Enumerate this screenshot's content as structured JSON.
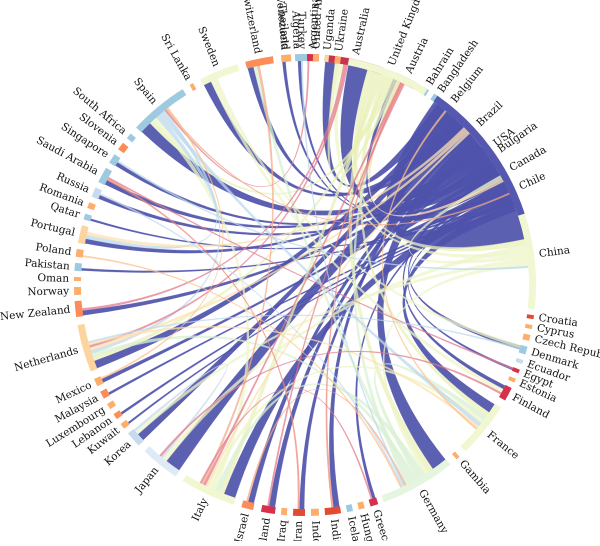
{
  "countries": [
    {
      "name": "Venezuela",
      "a0": -5.5,
      "a1": -4.5,
      "color": "#9ecae1"
    },
    {
      "name": "Algeria",
      "a0": -2.5,
      "a1": -1.5,
      "color": "#9ecae1"
    },
    {
      "name": "Argentina",
      "a0": 0.5,
      "a1": 3.5,
      "color": "#d6304b"
    },
    {
      "name": "Australia",
      "a0": 5.0,
      "a1": 20.0,
      "color": "#c8344e"
    },
    {
      "name": "Austria",
      "a0": 23.0,
      "a1": 29.0,
      "color": "#c8344e"
    },
    {
      "name": "Bahrain",
      "a0": 31.0,
      "a1": 32.5,
      "color": "#9ecae1"
    },
    {
      "name": "Bangladesh",
      "a0": 34.0,
      "a1": 36.0,
      "color": "#9ecae1"
    },
    {
      "name": "Belgium",
      "a0": 37.5,
      "a1": 40.5,
      "color": "#fdae6b"
    },
    {
      "name": "Brazil",
      "a0": 42.5,
      "a1": 52.0,
      "color": "#fdd49e"
    },
    {
      "name": "Bulgaria",
      "a0": 54.0,
      "a1": 56.5,
      "color": "#fdae6b"
    },
    {
      "name": "Canada",
      "a0": 58.0,
      "a1": 63.0,
      "color": "#fdd49e"
    },
    {
      "name": "Chile",
      "a0": 64.5,
      "a1": 66.5,
      "color": "#fc8d59"
    },
    {
      "name": "China",
      "a0": 69.0,
      "a1": 96.0,
      "color": "#f1f7d0"
    },
    {
      "name": "Croatia",
      "a0": 97.5,
      "a1": 98.5,
      "color": "#e34a33"
    },
    {
      "name": "Cyprus",
      "a0": 100.0,
      "a1": 101.0,
      "color": "#fdae6b"
    },
    {
      "name": "Czech Republic",
      "a0": 102.5,
      "a1": 104.0,
      "color": "#fdae6b"
    },
    {
      "name": "Denmark",
      "a0": 105.5,
      "a1": 107.5,
      "color": "#9ecae1"
    },
    {
      "name": "Ecuador",
      "a0": 109.0,
      "a1": 110.0,
      "color": "#c6dbef"
    },
    {
      "name": "Egypt",
      "a0": 111.5,
      "a1": 112.5,
      "color": "#d6304b"
    },
    {
      "name": "Estonia",
      "a0": 114.0,
      "a1": 115.0,
      "color": "#fdae6b"
    },
    {
      "name": "Finland",
      "a0": 116.5,
      "a1": 120.0,
      "color": "#d6304b"
    },
    {
      "name": "France",
      "a0": 122.0,
      "a1": 136.0,
      "color": "#f1f7d0"
    },
    {
      "name": "Gambia",
      "a0": 138.0,
      "a1": 139.0,
      "color": "#fdae6b"
    },
    {
      "name": "Germany",
      "a0": 141.0,
      "a1": 160.0,
      "color": "#e5f5e0"
    },
    {
      "name": "Greece",
      "a0": 161.5,
      "a1": 163.5,
      "color": "#d6304b"
    },
    {
      "name": "Hungary",
      "a0": 165.0,
      "a1": 166.5,
      "color": "#fdae6b"
    },
    {
      "name": "Iceland",
      "a0": 168.0,
      "a1": 169.5,
      "color": "#9ecae1"
    },
    {
      "name": "India",
      "a0": 171.0,
      "a1": 175.0,
      "color": "#e34a33"
    },
    {
      "name": "Indonesia",
      "a0": 176.5,
      "a1": 178.5,
      "color": "#fdae6b"
    },
    {
      "name": "Iran",
      "a0": 180.0,
      "a1": 183.0,
      "color": "#e34a33"
    },
    {
      "name": "Iraq",
      "a0": 184.5,
      "a1": 186.0,
      "color": "#fdae6b"
    },
    {
      "name": "Ireland",
      "a0": 187.5,
      "a1": 191.0,
      "color": "#d6304b"
    },
    {
      "name": "Israel",
      "a0": 193.0,
      "a1": 196.0,
      "color": "#fc8d59"
    },
    {
      "name": "Italy",
      "a0": 198.0,
      "a1": 212.0,
      "color": "#f1f7d0"
    },
    {
      "name": "Japan",
      "a0": 214.0,
      "a1": 224.0,
      "color": "#deebf7"
    },
    {
      "name": "Korea",
      "a0": 226.0,
      "a1": 230.0,
      "color": "#c6dbef"
    },
    {
      "name": "Kuwait",
      "a0": 231.5,
      "a1": 233.0,
      "color": "#fdae6b"
    },
    {
      "name": "Lebanon",
      "a0": 234.5,
      "a1": 236.0,
      "color": "#fc8d59"
    },
    {
      "name": "Luxembourg",
      "a0": 237.5,
      "a1": 239.0,
      "color": "#fdae6b"
    },
    {
      "name": "Malaysia",
      "a0": 240.5,
      "a1": 242.5,
      "color": "#fc8d59"
    },
    {
      "name": "Mexico",
      "a0": 244.0,
      "a1": 246.0,
      "color": "#fdae6b"
    },
    {
      "name": "Netherlands",
      "a0": 248.0,
      "a1": 260.0,
      "color": "#fdd49e"
    },
    {
      "name": "New Zealand",
      "a0": 262.0,
      "a1": 266.0,
      "color": "#fc8d59"
    },
    {
      "name": "Norway",
      "a0": 267.5,
      "a1": 269.5,
      "color": "#fdae6b"
    },
    {
      "name": "Oman",
      "a0": 271.0,
      "a1": 272.0,
      "color": "#fdae6b"
    },
    {
      "name": "Pakistan",
      "a0": 273.5,
      "a1": 275.5,
      "color": "#9ecae1"
    },
    {
      "name": "Poland",
      "a0": 277.0,
      "a1": 279.0,
      "color": "#fdae6b"
    },
    {
      "name": "Portugal",
      "a0": 280.5,
      "a1": 285.0,
      "color": "#fdd49e"
    },
    {
      "name": "Qatar",
      "a0": 286.5,
      "a1": 288.0,
      "color": "#9ecae1"
    },
    {
      "name": "Romania",
      "a0": 289.5,
      "a1": 291.0,
      "color": "#fdae6b"
    },
    {
      "name": "Russia",
      "a0": 292.5,
      "a1": 295.0,
      "color": "#c6dbef"
    },
    {
      "name": "Saudi Arabia",
      "a0": 296.5,
      "a1": 300.5,
      "color": "#9ecae1"
    },
    {
      "name": "Singapore",
      "a0": 302.0,
      "a1": 304.5,
      "color": "#9ecae1"
    },
    {
      "name": "Slovenia",
      "a0": 306.0,
      "a1": 308.0,
      "color": "#fc8d59"
    },
    {
      "name": "South Africa",
      "a0": 309.5,
      "a1": 311.0,
      "color": "#9ecae1"
    },
    {
      "name": "Spain",
      "a0": 313.0,
      "a1": 328.0,
      "color": "#9ecae1"
    },
    {
      "name": "Sri Lanka",
      "a0": 330.0,
      "a1": 331.0,
      "color": "#fdae6b"
    },
    {
      "name": "Sweden",
      "a0": 333.0,
      "a1": 343.0,
      "color": "#f1f7d0"
    },
    {
      "name": "Switzerland",
      "a0": 345.0,
      "a1": 352.0,
      "color": "#fc8d59"
    },
    {
      "name": "Thailand",
      "a0": 354.0,
      "a1": 356.5,
      "color": "#fdae6b"
    },
    {
      "name": "Turkey",
      "a0": 358.0,
      "a1": 360.5,
      "color": "#9ecae1"
    },
    {
      "name": "United Arab Emirates",
      "a0": 362.0,
      "a1": 363.5,
      "color": "#fdae6b"
    },
    {
      "name": "Uganda",
      "a0": 365.0,
      "a1": 366.0,
      "color": "#fdd49e"
    },
    {
      "name": "Ukraine",
      "a0": 367.5,
      "a1": 369.0,
      "color": "#fdae6b"
    },
    {
      "name": "United Kingdom",
      "a0": 371.0,
      "a1": 392.0,
      "color": "#f1f7d0"
    },
    {
      "name": "USA",
      "a0": 395.0,
      "a1": 432.0,
      "color": "#5558b0"
    }
  ],
  "chords": [
    {
      "from": "USA",
      "to": "China",
      "w": 9,
      "color": "#4e52aa"
    },
    {
      "from": "USA",
      "to": "Japan",
      "w": 4,
      "color": "#4e52aa"
    },
    {
      "from": "USA",
      "to": "Germany",
      "w": 4,
      "color": "#4e52aa"
    },
    {
      "from": "USA",
      "to": "Spain",
      "w": 3,
      "color": "#4e52aa"
    },
    {
      "from": "USA",
      "to": "United Kingdom",
      "w": 5,
      "color": "#4e52aa"
    },
    {
      "from": "USA",
      "to": "Brazil",
      "w": 2.5,
      "color": "#4e52aa"
    },
    {
      "from": "USA",
      "to": "Canada",
      "w": 2.5,
      "color": "#4e52aa"
    },
    {
      "from": "USA",
      "to": "Italy",
      "w": 3,
      "color": "#4e52aa"
    },
    {
      "from": "USA",
      "to": "France",
      "w": 2.5,
      "color": "#4e52aa"
    },
    {
      "from": "USA",
      "to": "Australia",
      "w": 2.5,
      "color": "#4e52aa"
    },
    {
      "from": "USA",
      "to": "Netherlands",
      "w": 2,
      "color": "#4e52aa"
    },
    {
      "from": "USA",
      "to": "Korea",
      "w": 2,
      "color": "#4e52aa"
    },
    {
      "from": "USA",
      "to": "Sweden",
      "w": 2,
      "color": "#4e52aa"
    },
    {
      "from": "USA",
      "to": "Switzerland",
      "w": 1.5,
      "color": "#4e52aa"
    },
    {
      "from": "USA",
      "to": "India",
      "w": 1.5,
      "color": "#4e52aa"
    },
    {
      "from": "USA",
      "to": "Israel",
      "w": 1.5,
      "color": "#4e52aa"
    },
    {
      "from": "USA",
      "to": "Ireland",
      "w": 1.5,
      "color": "#4e52aa"
    },
    {
      "from": "USA",
      "to": "Iran",
      "w": 1.2,
      "color": "#4e52aa"
    },
    {
      "from": "USA",
      "to": "Portugal",
      "w": 1.2,
      "color": "#4e52aa"
    },
    {
      "from": "USA",
      "to": "Saudi Arabia",
      "w": 1.2,
      "color": "#4e52aa"
    },
    {
      "from": "USA",
      "to": "New Zealand",
      "w": 1.2,
      "color": "#4e52aa"
    },
    {
      "from": "USA",
      "to": "Chile",
      "w": 1,
      "color": "#4e52aa"
    },
    {
      "from": "USA",
      "to": "Singapore",
      "w": 1,
      "color": "#4e52aa"
    },
    {
      "from": "USA",
      "to": "Russia",
      "w": 1,
      "color": "#4e52aa"
    },
    {
      "from": "USA",
      "to": "Mexico",
      "w": 1,
      "color": "#4e52aa"
    },
    {
      "from": "USA",
      "to": "Finland",
      "w": 1,
      "color": "#4e52aa"
    },
    {
      "from": "USA",
      "to": "Austria",
      "w": 1,
      "color": "#4e52aa"
    },
    {
      "from": "USA",
      "to": "Belgium",
      "w": 1,
      "color": "#4e52aa"
    },
    {
      "from": "USA",
      "to": "Denmark",
      "w": 1,
      "color": "#4e52aa"
    },
    {
      "from": "USA",
      "to": "Greece",
      "w": 0.8,
      "color": "#4e52aa"
    },
    {
      "from": "USA",
      "to": "Turkey",
      "w": 0.8,
      "color": "#4e52aa"
    },
    {
      "from": "USA",
      "to": "Thailand",
      "w": 0.8,
      "color": "#4e52aa"
    },
    {
      "from": "USA",
      "to": "Egypt",
      "w": 0.6,
      "color": "#4e52aa"
    },
    {
      "from": "USA",
      "to": "Pakistan",
      "w": 0.6,
      "color": "#4e52aa"
    },
    {
      "from": "USA",
      "to": "Malaysia",
      "w": 0.6,
      "color": "#4e52aa"
    },
    {
      "from": "USA",
      "to": "Lebanon",
      "w": 0.6,
      "color": "#4e52aa"
    },
    {
      "from": "USA",
      "to": "Qatar",
      "w": 0.5,
      "color": "#4e52aa"
    },
    {
      "from": "USA",
      "to": "Kuwait",
      "w": 0.5,
      "color": "#4e52aa"
    },
    {
      "from": "United Kingdom",
      "to": "China",
      "w": 1.5,
      "color": "#e9f0b8"
    },
    {
      "from": "United Kingdom",
      "to": "Germany",
      "w": 1.5,
      "color": "#e9f0b8"
    },
    {
      "from": "United Kingdom",
      "to": "Italy",
      "w": 1.2,
      "color": "#e9f0b8"
    },
    {
      "from": "United Kingdom",
      "to": "France",
      "w": 1.2,
      "color": "#e9f0b8"
    },
    {
      "from": "United Kingdom",
      "to": "Netherlands",
      "w": 1,
      "color": "#e9f0b8"
    },
    {
      "from": "United Kingdom",
      "to": "Spain",
      "w": 1,
      "color": "#e9f0b8"
    },
    {
      "from": "United Kingdom",
      "to": "Australia",
      "w": 1,
      "color": "#e9f0b8"
    },
    {
      "from": "China",
      "to": "Japan",
      "w": 1.2,
      "color": "#eef5c8"
    },
    {
      "from": "China",
      "to": "Australia",
      "w": 1.2,
      "color": "#eef5c8"
    },
    {
      "from": "China",
      "to": "Canada",
      "w": 1,
      "color": "#eef5c8"
    },
    {
      "from": "China",
      "to": "Korea",
      "w": 1,
      "color": "#eef5c8"
    },
    {
      "from": "China",
      "to": "Germany",
      "w": 1,
      "color": "#eef5c8"
    },
    {
      "from": "Germany",
      "to": "Italy",
      "w": 1.2,
      "color": "#d9f0d3"
    },
    {
      "from": "Germany",
      "to": "France",
      "w": 1.2,
      "color": "#d9f0d3"
    },
    {
      "from": "Germany",
      "to": "Netherlands",
      "w": 1,
      "color": "#d9f0d3"
    },
    {
      "from": "Germany",
      "to": "Switzerland",
      "w": 1,
      "color": "#d9f0d3"
    },
    {
      "from": "Germany",
      "to": "Austria",
      "w": 1,
      "color": "#d9f0d3"
    },
    {
      "from": "Italy",
      "to": "Spain",
      "w": 1.2,
      "color": "#eef5c8"
    },
    {
      "from": "Italy",
      "to": "France",
      "w": 1,
      "color": "#eef5c8"
    },
    {
      "from": "Spain",
      "to": "Portugal",
      "w": 1,
      "color": "#bcd9ec"
    },
    {
      "from": "Spain",
      "to": "France",
      "w": 1,
      "color": "#bcd9ec"
    },
    {
      "from": "Spain",
      "to": "Netherlands",
      "w": 0.8,
      "color": "#bcd9ec"
    },
    {
      "from": "Sweden",
      "to": "Finland",
      "w": 1,
      "color": "#eef5c8"
    },
    {
      "from": "Sweden",
      "to": "Denmark",
      "w": 0.8,
      "color": "#eef5c8"
    },
    {
      "from": "Brazil",
      "to": "Portugal",
      "w": 0.8,
      "color": "#fde0b2"
    },
    {
      "from": "Brazil",
      "to": "Netherlands",
      "w": 0.8,
      "color": "#fde0b2"
    },
    {
      "from": "Brazil",
      "to": "Italy",
      "w": 0.6,
      "color": "#fde0b2"
    },
    {
      "from": "Canada",
      "to": "United Kingdom",
      "w": 0.8,
      "color": "#fde0b2"
    },
    {
      "from": "Australia",
      "to": "New Zealand",
      "w": 0.6,
      "color": "#e17b8c"
    },
    {
      "from": "Australia",
      "to": "Netherlands",
      "w": 0.6,
      "color": "#e17b8c"
    },
    {
      "from": "Austria",
      "to": "Italy",
      "w": 0.6,
      "color": "#e17b8c"
    },
    {
      "from": "Switzerland",
      "to": "Italy",
      "w": 0.6,
      "color": "#f5a98a"
    },
    {
      "from": "Iran",
      "to": "Saudi Arabia",
      "w": 0.5,
      "color": "#ef8a7a"
    },
    {
      "from": "India",
      "to": "United Kingdom",
      "w": 0.5,
      "color": "#ef8a7a"
    },
    {
      "from": "Japan",
      "to": "Korea",
      "w": 0.6,
      "color": "#c6dbef"
    },
    {
      "from": "Netherlands",
      "to": "France",
      "w": 0.6,
      "color": "#fde0b2"
    },
    {
      "from": "Finland",
      "to": "Japan",
      "w": 0.5,
      "color": "#e17b8c"
    },
    {
      "from": "Ireland",
      "to": "United Kingdom",
      "w": 0.5,
      "color": "#e17b8c"
    },
    {
      "from": "Israel",
      "to": "Germany",
      "w": 0.5,
      "color": "#f5a98a"
    },
    {
      "from": "Greece",
      "to": "Italy",
      "w": 0.4,
      "color": "#e17b8c"
    },
    {
      "from": "Egypt",
      "to": "Saudi Arabia",
      "w": 0.4,
      "color": "#e17b8c"
    },
    {
      "from": "Argentina",
      "to": "Spain",
      "w": 0.4,
      "color": "#e17b8c"
    },
    {
      "from": "Turkey",
      "to": "Germany",
      "w": 0.4,
      "color": "#bcd9ec"
    },
    {
      "from": "Chile",
      "to": "Spain",
      "w": 0.4,
      "color": "#f5a98a"
    },
    {
      "from": "Denmark",
      "to": "Netherlands",
      "w": 0.4,
      "color": "#bcd9ec"
    },
    {
      "from": "Belgium",
      "to": "France",
      "w": 0.5,
      "color": "#fdc08a"
    },
    {
      "from": "Singapore",
      "to": "China",
      "w": 0.5,
      "color": "#bcd9ec"
    },
    {
      "from": "Russia",
      "to": "Germany",
      "w": 0.4,
      "color": "#c6dbef"
    },
    {
      "from": "Poland",
      "to": "Germany",
      "w": 0.4,
      "color": "#fdc08a"
    },
    {
      "from": "Mexico",
      "to": "Spain",
      "w": 0.4,
      "color": "#fdc08a"
    }
  ]
}
